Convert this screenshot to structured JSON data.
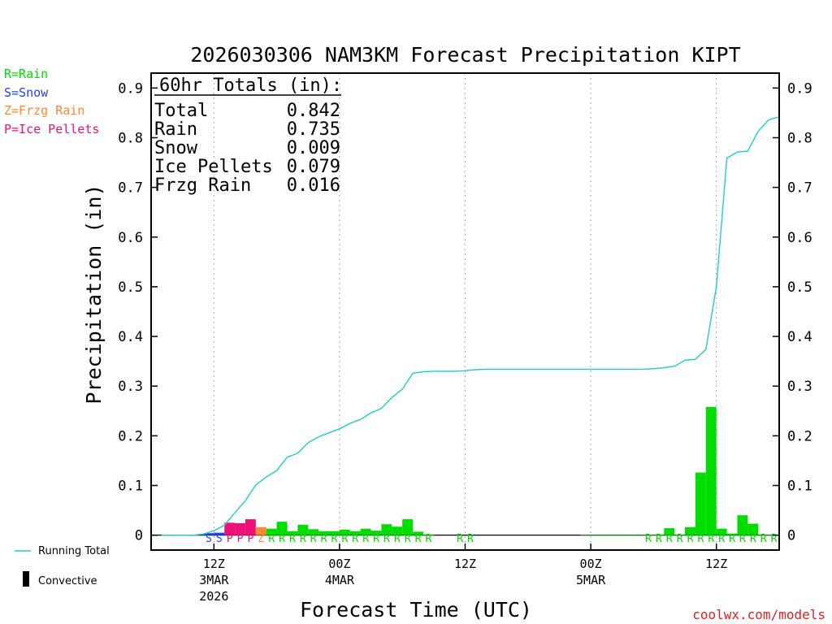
{
  "chart_data": {
    "type": "bar",
    "title": "2026030306 NAM3KM Forecast Precipitation KIPT",
    "xlabel": "Forecast Time (UTC)",
    "ylabel": "Precipitation (in)",
    "ylim": [
      -0.03,
      0.93
    ],
    "yticks": [
      0,
      0.1,
      0.2,
      0.3,
      0.4,
      0.5,
      0.6,
      0.7,
      0.8,
      0.9
    ],
    "ytick_labels": [
      "0",
      "0.1",
      "0.2",
      "0.3",
      "0.4",
      "0.5",
      "0.6",
      "0.7",
      "0.8",
      "0.9"
    ],
    "x_range_hours": [
      6,
      66
    ],
    "x_ticks": [
      {
        "hour": 12,
        "label": "12Z",
        "sub": "3MAR",
        "sub2": "2026"
      },
      {
        "hour": 24,
        "label": "00Z",
        "sub": "4MAR",
        "sub2": ""
      },
      {
        "hour": 36,
        "label": "12Z",
        "sub": "",
        "sub2": ""
      },
      {
        "hour": 48,
        "label": "00Z",
        "sub": "5MAR",
        "sub2": ""
      },
      {
        "hour": 60,
        "label": "12Z",
        "sub": "",
        "sub2": ""
      }
    ],
    "totals": {
      "header": "60hr Totals (in):",
      "rows": [
        {
          "label": "Total",
          "value": "0.842"
        },
        {
          "label": "Rain",
          "value": "0.735"
        },
        {
          "label": "Snow",
          "value": "0.009"
        },
        {
          "label": "Ice Pellets",
          "value": "0.079"
        },
        {
          "label": "Frzg Rain",
          "value": "0.016"
        }
      ]
    },
    "bars": {
      "hours": [
        12,
        13,
        14,
        15,
        16,
        17,
        18,
        19,
        20,
        21,
        22,
        23,
        24,
        25,
        26,
        27,
        28,
        29,
        30,
        31,
        32,
        33,
        48,
        49,
        50,
        51,
        52,
        53,
        54,
        55,
        56,
        57,
        58,
        59,
        60,
        61,
        62,
        63,
        64,
        65,
        66
      ],
      "values": [
        0.004,
        0.005,
        0.025,
        0.024,
        0.032,
        0.016,
        0.013,
        0.027,
        0.008,
        0.021,
        0.012,
        0.008,
        0.008,
        0.011,
        0.008,
        0.013,
        0.009,
        0.022,
        0.017,
        0.032,
        0.007,
        0.001,
        0.001,
        0.001,
        0.001,
        0.001,
        0.001,
        0.001,
        0.001,
        0.001,
        0.014,
        0.001,
        0.016,
        0.126,
        0.258,
        0.013,
        0.003,
        0.04,
        0.023,
        0.001,
        0.001
      ],
      "types": [
        "S",
        "S",
        "P",
        "P",
        "P",
        "Z",
        "R",
        "R",
        "R",
        "R",
        "R",
        "R",
        "R",
        "R",
        "R",
        "R",
        "R",
        "R",
        "R",
        "R",
        "R",
        "R",
        "R",
        "R",
        "R",
        "R",
        "R",
        "R",
        "R",
        "R",
        "R",
        "R",
        "R",
        "R",
        "R",
        "R",
        "R",
        "R",
        "R",
        "R",
        "R"
      ]
    },
    "type_labels": {
      "S": {
        "hours": [
          11.5,
          12.5
        ]
      },
      "P": {
        "hours": [
          13.5,
          14.5,
          15.5
        ]
      },
      "Z": {
        "hours": [
          16.5
        ]
      },
      "R": {
        "hours": [
          17.5,
          18.5,
          19.5,
          20.5,
          21.5,
          22.5,
          23.5,
          24.5,
          25.5,
          26.5,
          27.5,
          28.5,
          29.5,
          30.5,
          31.5,
          32.5,
          35.5,
          36.5,
          53.5,
          54.5,
          55.5,
          56.5,
          57.5,
          58.5,
          59.5,
          60.5,
          61.5,
          62.5,
          63.5,
          64.5,
          65.5
        ]
      }
    },
    "running_total": {
      "name": "Running Total",
      "hours": [
        7,
        8,
        9,
        10,
        11,
        12,
        13,
        14,
        15,
        16,
        17,
        18,
        19,
        20,
        21,
        22,
        23,
        24,
        25,
        26,
        27,
        28,
        29,
        30,
        31,
        32,
        33,
        34,
        35,
        36,
        37,
        38,
        39,
        40,
        41,
        42,
        43,
        44,
        45,
        46,
        47,
        48,
        49,
        50,
        51,
        52,
        53,
        54,
        55,
        56,
        57,
        58,
        59,
        60,
        61,
        62,
        63,
        64,
        65,
        66
      ],
      "values": [
        0.0,
        0.0,
        0.0,
        0.0,
        0.002,
        0.009,
        0.02,
        0.045,
        0.069,
        0.101,
        0.117,
        0.13,
        0.157,
        0.165,
        0.186,
        0.198,
        0.206,
        0.214,
        0.225,
        0.233,
        0.246,
        0.255,
        0.277,
        0.294,
        0.326,
        0.329,
        0.33,
        0.33,
        0.33,
        0.331,
        0.333,
        0.334,
        0.334,
        0.334,
        0.334,
        0.334,
        0.334,
        0.334,
        0.334,
        0.334,
        0.334,
        0.334,
        0.334,
        0.334,
        0.334,
        0.334,
        0.334,
        0.335,
        0.337,
        0.34,
        0.352,
        0.354,
        0.374,
        0.5,
        0.759,
        0.771,
        0.773,
        0.813,
        0.836,
        0.842
      ]
    },
    "convective_label": "Convective"
  },
  "legend": {
    "items": [
      {
        "text": "R=Rain",
        "color": "#00dd00"
      },
      {
        "text": "S=Snow",
        "color": "#2244ee"
      },
      {
        "text": "Z=Frzg Rain",
        "color": "#ff8833"
      },
      {
        "text": "P=Ice Pellets",
        "color": "#ee1177"
      }
    ]
  },
  "colors": {
    "rain": "#00dd00",
    "snow": "#2244ee",
    "ice_pellets": "#ee1177",
    "frzg_rain": "#ff8833",
    "running_total": "#22cccc",
    "credit": "#dd2222"
  },
  "credit": "coolwx.com/models"
}
